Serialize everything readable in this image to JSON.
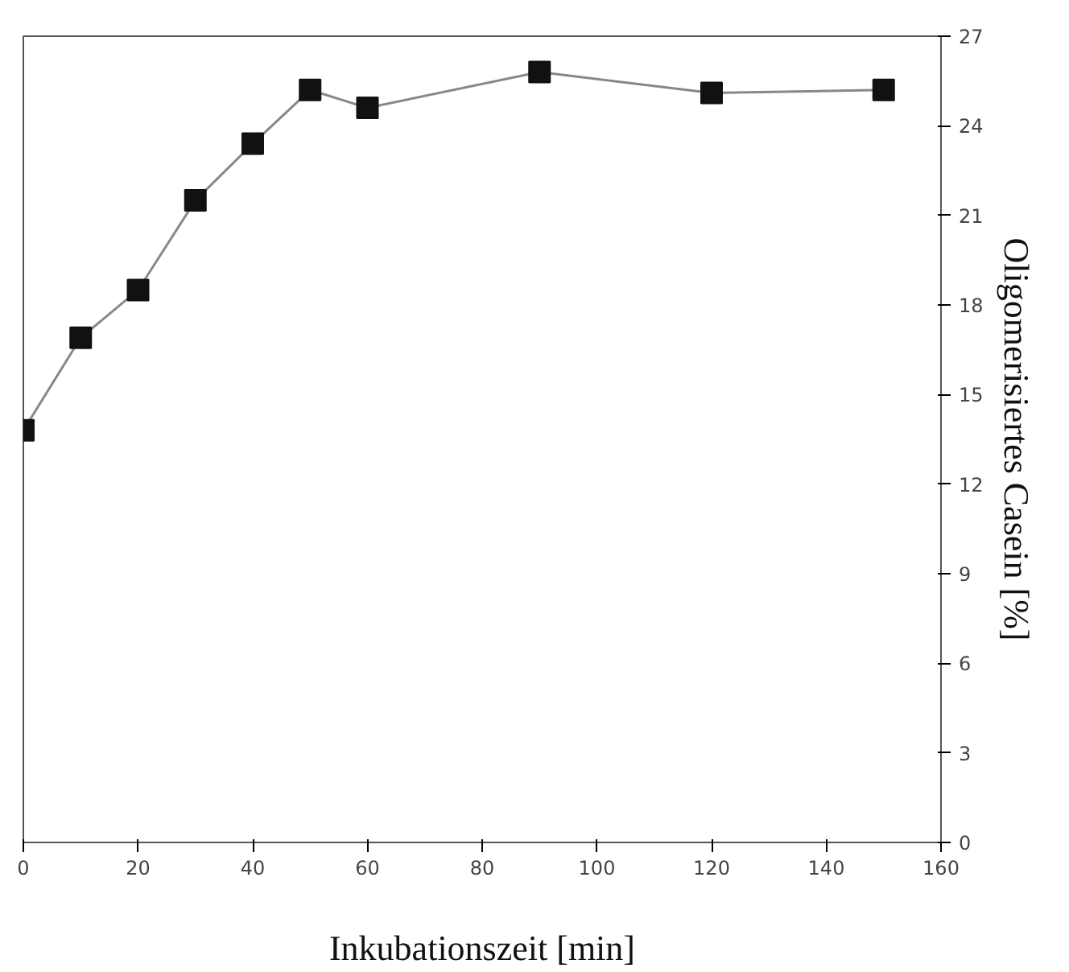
{
  "chart_data": {
    "type": "line",
    "xlabel": "Inkubationszeit [min]",
    "ylabel": "Oligomerisiertes Casein [%]",
    "x": [
      0,
      10,
      20,
      30,
      40,
      50,
      60,
      90,
      120,
      150
    ],
    "series": [
      {
        "color": "#888888",
        "values": [
          13.8,
          16.9,
          18.5,
          21.5,
          23.4,
          25.2,
          24.6,
          25.8,
          25.1,
          25.2
        ]
      }
    ],
    "xlim": [
      0,
      160
    ],
    "xticks": [
      0,
      20,
      40,
      60,
      80,
      100,
      120,
      140,
      160
    ],
    "ylim": [
      0,
      27
    ],
    "yticks": [
      0,
      3,
      6,
      9,
      12,
      15,
      18,
      21,
      24,
      27
    ],
    "marker": "square",
    "line_style": "solid",
    "grid": false
  }
}
